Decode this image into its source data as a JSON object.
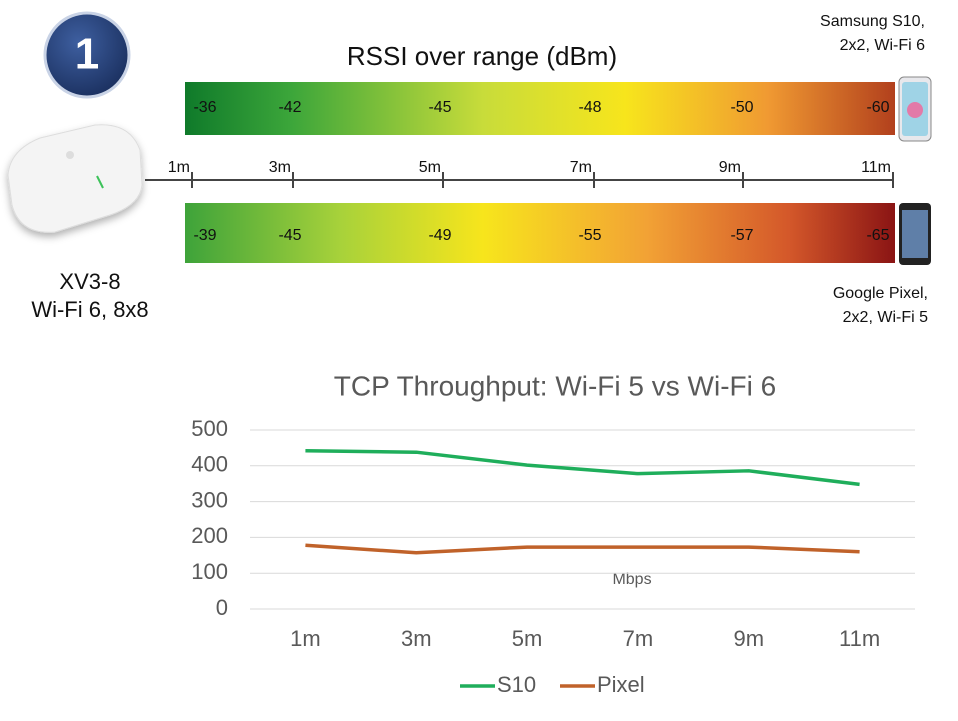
{
  "badge": "1",
  "rssi": {
    "title": "RSSI over range (dBm)",
    "distances": [
      "1m",
      "3m",
      "5m",
      "7m",
      "9m",
      "11m"
    ],
    "top_device": [
      "Samsung S10,",
      "2x2, Wi-Fi 6"
    ],
    "top_values": [
      -36,
      -42,
      -45,
      -48,
      -50,
      -60
    ],
    "bottom_device": [
      "Google Pixel,",
      "2x2, Wi-Fi 5"
    ],
    "bottom_values": [
      -39,
      -45,
      -49,
      -55,
      -57,
      -65
    ]
  },
  "access_point": [
    "XV3-8",
    "Wi-Fi 6, 8x8"
  ],
  "chart_data": {
    "type": "line",
    "title": "TCP Throughput:  Wi-Fi 5 vs Wi-Fi 6",
    "categories": [
      "1m",
      "3m",
      "5m",
      "7m",
      "9m",
      "11m"
    ],
    "series": [
      {
        "name": "S10",
        "color": "#1fae5b",
        "values": [
          442,
          438,
          402,
          378,
          386,
          348
        ]
      },
      {
        "name": "Pixel",
        "color": "#c0622a",
        "values": [
          178,
          157,
          173,
          173,
          173,
          160
        ]
      }
    ],
    "ylim": [
      0,
      500
    ],
    "yticks": [
      0,
      100,
      200,
      300,
      400,
      500
    ],
    "grid": true,
    "annotation": "Mbps",
    "legend": "bottom"
  }
}
